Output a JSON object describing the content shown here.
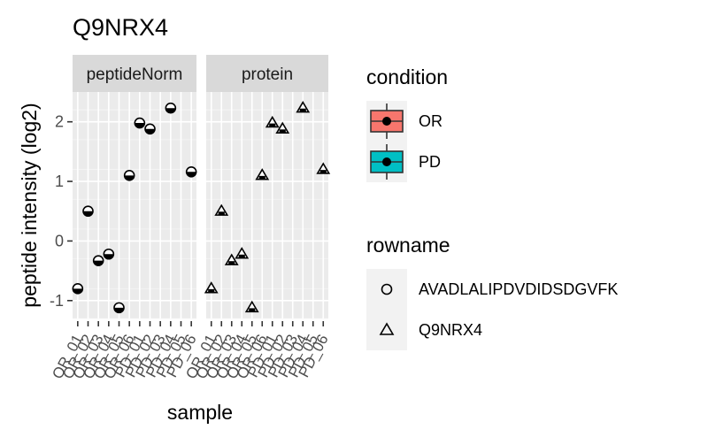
{
  "chart_data": {
    "type": "scatter",
    "title": "Q9NRX4",
    "xlabel": "sample",
    "ylabel": "peptide intensity (log2)",
    "ylim": [
      -1.3,
      2.5
    ],
    "yticks": [
      -1,
      0,
      1,
      2
    ],
    "grid": true,
    "facets": [
      "peptideNorm",
      "protein"
    ],
    "samples": [
      "OR_01",
      "OR_02",
      "OR_03",
      "OR_04",
      "OR_05",
      "OR_06",
      "PD_01",
      "PD_02",
      "PD_03",
      "PD_04",
      "PD_05",
      "PD_06"
    ],
    "sample_tick_labels": [
      "OR_01",
      "OR_02",
      "OR_03",
      "OR_04",
      "OR_05",
      "OR_06",
      "PD_01",
      "PD_02",
      "PD_03",
      "PD_04",
      "PD_05",
      "PD_06",
      "OR_01",
      "OR_02",
      "OR_03",
      "OR_04",
      "OR_05",
      "OR_06",
      "PD_01",
      "PD_02",
      "PD_03",
      "PD_04",
      "PD_05",
      "PD_06"
    ],
    "series": [
      {
        "facet": "peptideNorm",
        "rowname": "AVADLALIPDVDIDSDGVFK",
        "shape": "circle",
        "values": [
          -0.8,
          0.5,
          -0.33,
          -0.22,
          -1.12,
          1.1,
          1.98,
          1.88,
          null,
          2.23,
          null,
          1.16
        ],
        "condition": [
          "OR",
          "OR",
          "OR",
          "OR",
          "OR",
          "OR",
          "PD",
          "PD",
          "PD",
          "PD",
          "PD",
          "PD"
        ]
      },
      {
        "facet": "protein",
        "rowname": "Q9NRX4",
        "shape": "triangle",
        "values": [
          -0.8,
          0.5,
          -0.33,
          -0.22,
          -1.12,
          1.1,
          1.98,
          1.88,
          null,
          2.23,
          null,
          1.2
        ],
        "condition": [
          "OR",
          "OR",
          "OR",
          "OR",
          "OR",
          "OR",
          "PD",
          "PD",
          "PD",
          "PD",
          "PD",
          "PD"
        ]
      }
    ],
    "legend": {
      "placement": "right",
      "condition": {
        "title": "condition",
        "items": [
          {
            "label": "OR",
            "color": "#f8766d"
          },
          {
            "label": "PD",
            "color": "#00bfc4"
          }
        ]
      },
      "rowname": {
        "title": "rowname",
        "items": [
          {
            "label": "AVADLALIPDVDIDSDGVFK",
            "shape": "circle"
          },
          {
            "label": "Q9NRX4",
            "shape": "triangle"
          }
        ]
      }
    }
  }
}
